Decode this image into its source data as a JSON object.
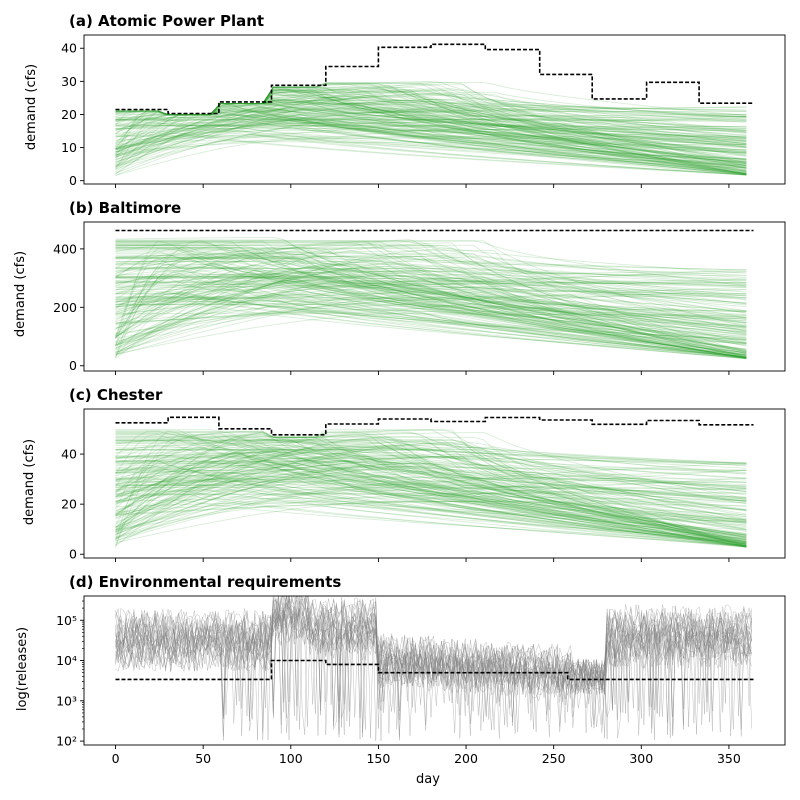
{
  "figure": {
    "xlabel": "day",
    "colors": {
      "traces": "#2ca02c",
      "env_traces": "#808080",
      "threshold": "#000000"
    }
  },
  "chart_data": [
    {
      "type": "line",
      "title": "(a) Atomic Power Plant",
      "xlabel": "",
      "ylabel": "demand (cfs)",
      "xlim": [
        -18,
        382
      ],
      "ylim": [
        -1,
        44
      ],
      "xticks": [
        0,
        50,
        100,
        150,
        200,
        250,
        300,
        350
      ],
      "yticks": [
        0,
        10,
        20,
        30,
        40
      ],
      "ytick_labels": [
        "0",
        "10",
        "20",
        "30",
        "40"
      ],
      "show_xtick_labels": false,
      "grid": false,
      "series": [
        {
          "style": "dashed-step",
          "x": [
            0,
            30,
            30,
            59,
            59,
            89,
            89,
            120,
            120,
            150,
            150,
            180,
            180,
            211,
            211,
            242,
            242,
            272,
            272,
            303,
            303,
            333,
            333,
            364
          ],
          "y": [
            21.5,
            21.5,
            20.3,
            20.3,
            23.8,
            23.8,
            28.8,
            28.8,
            34.5,
            34.5,
            40.3,
            40.3,
            41.2,
            41.2,
            39.6,
            39.6,
            32.1,
            32.1,
            24.7,
            24.7,
            29.7,
            29.7,
            23.4,
            23.4
          ]
        }
      ]
    },
    {
      "type": "line",
      "title": "(b) Baltimore",
      "xlabel": "",
      "ylabel": "demand (cfs)",
      "xlim": [
        -18,
        382
      ],
      "ylim": [
        -18,
        492
      ],
      "xticks": [
        0,
        50,
        100,
        150,
        200,
        250,
        300,
        350
      ],
      "yticks": [
        0,
        200,
        400
      ],
      "ytick_labels": [
        "0",
        "200",
        "400"
      ],
      "show_xtick_labels": false,
      "grid": false,
      "series": [
        {
          "style": "dashed-step",
          "x": [
            0,
            364
          ],
          "y": [
            463,
            463
          ]
        }
      ]
    },
    {
      "type": "line",
      "title": "(c) Chester",
      "xlabel": "",
      "ylabel": "demand (cfs)",
      "xlim": [
        -18,
        382
      ],
      "ylim": [
        -1.5,
        58
      ],
      "xticks": [
        0,
        50,
        100,
        150,
        200,
        250,
        300,
        350
      ],
      "yticks": [
        0,
        20,
        40
      ],
      "ytick_labels": [
        "0",
        "20",
        "40"
      ],
      "show_xtick_labels": false,
      "grid": false,
      "series": [
        {
          "style": "dashed-step",
          "x": [
            0,
            30,
            30,
            59,
            59,
            89,
            89,
            120,
            120,
            150,
            150,
            180,
            180,
            211,
            211,
            242,
            242,
            272,
            272,
            303,
            303,
            333,
            333,
            364
          ],
          "y": [
            52.5,
            52.5,
            54.7,
            54.7,
            50.1,
            50.1,
            47.7,
            47.7,
            52.0,
            52.0,
            54.0,
            54.0,
            53.0,
            53.0,
            54.6,
            54.6,
            53.6,
            53.6,
            51.9,
            51.9,
            53.4,
            53.4,
            51.7,
            51.7
          ]
        }
      ]
    },
    {
      "type": "line",
      "title": "(d) Environmental requirements",
      "xlabel": "day",
      "ylabel": "log(releases)",
      "yscale": "log",
      "xlim": [
        -18,
        382
      ],
      "ylim": [
        80,
        400000
      ],
      "xticks": [
        0,
        50,
        100,
        150,
        200,
        250,
        300,
        350
      ],
      "xtick_labels": [
        "0",
        "50",
        "100",
        "150",
        "200",
        "250",
        "300",
        "350"
      ],
      "yticks": [
        100,
        1000,
        10000,
        100000
      ],
      "ytick_labels": [
        "10²",
        "10³",
        "10⁴",
        "10⁵"
      ],
      "show_xtick_labels": true,
      "grid": false,
      "series": [
        {
          "style": "dashed-step",
          "x": [
            0,
            89,
            89,
            120,
            120,
            150,
            150,
            258,
            258,
            364
          ],
          "y": [
            3400,
            3400,
            10000,
            10000,
            8000,
            8000,
            5000,
            5000,
            3400,
            3400
          ]
        }
      ]
    }
  ]
}
